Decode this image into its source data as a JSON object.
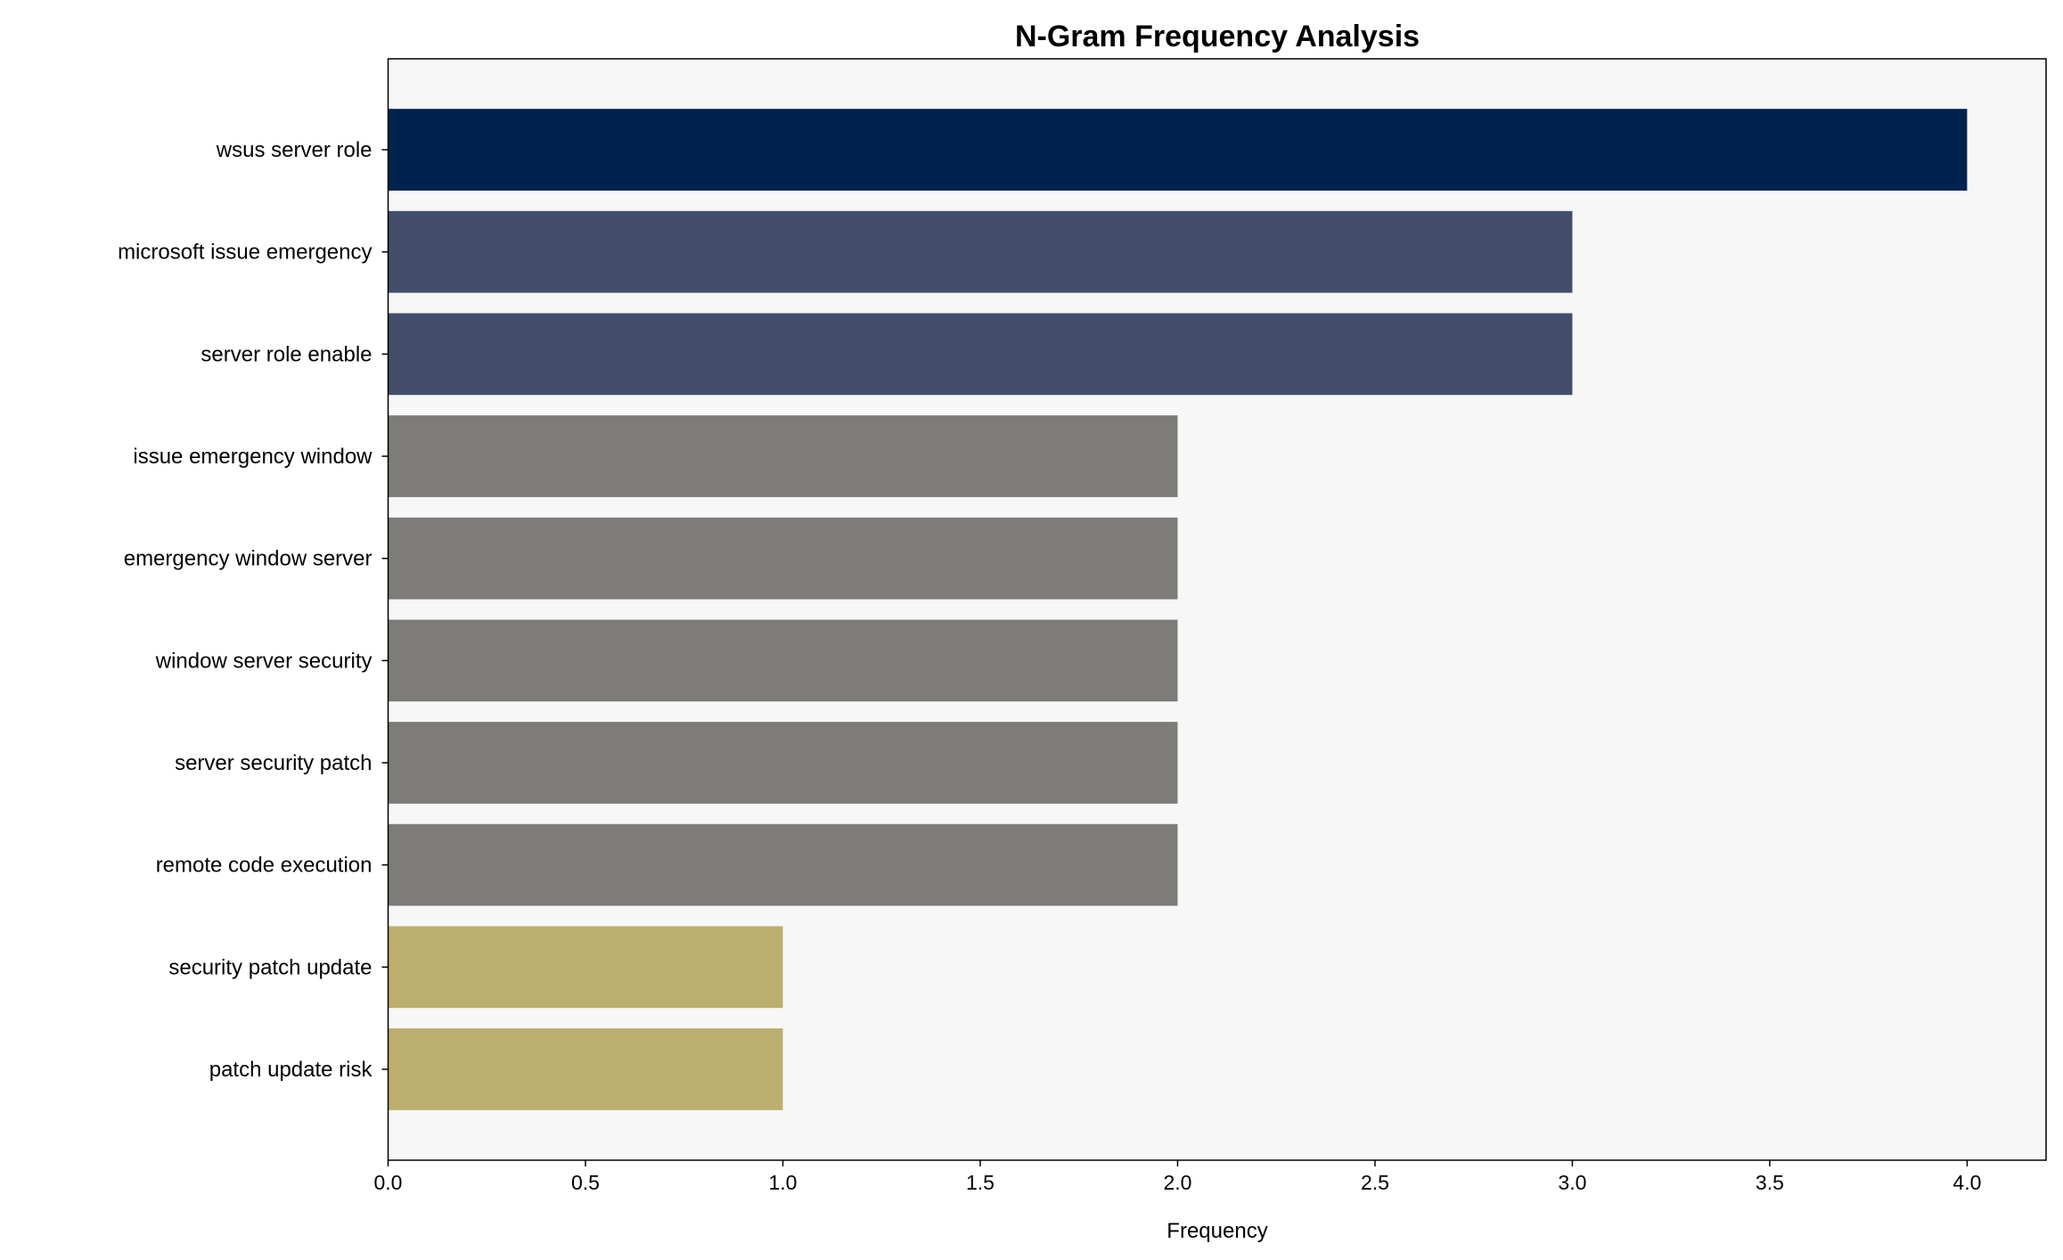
{
  "chart_data": {
    "type": "bar",
    "orientation": "horizontal",
    "title": "N-Gram Frequency Analysis",
    "xlabel": "Frequency",
    "ylabel": "",
    "categories": [
      "wsus server role",
      "microsoft issue emergency",
      "server role enable",
      "issue emergency window",
      "emergency window server",
      "window server security",
      "server security patch",
      "remote code execution",
      "security patch update",
      "patch update risk"
    ],
    "values": [
      4,
      3,
      3,
      2,
      2,
      2,
      2,
      2,
      1,
      1
    ],
    "colors": [
      "#00224e",
      "#434e6c",
      "#434e6c",
      "#7d7c78",
      "#7d7c78",
      "#7d7c78",
      "#7d7c78",
      "#7d7c78",
      "#bcae6e",
      "#bcae6e"
    ],
    "xlim": [
      0,
      4.2
    ],
    "xticks": [
      "0.0",
      "0.5",
      "1.0",
      "1.5",
      "2.0",
      "2.5",
      "3.0",
      "3.5",
      "4.0"
    ],
    "grid": false,
    "legend": "none",
    "plot_background": "#f7f7f7"
  }
}
